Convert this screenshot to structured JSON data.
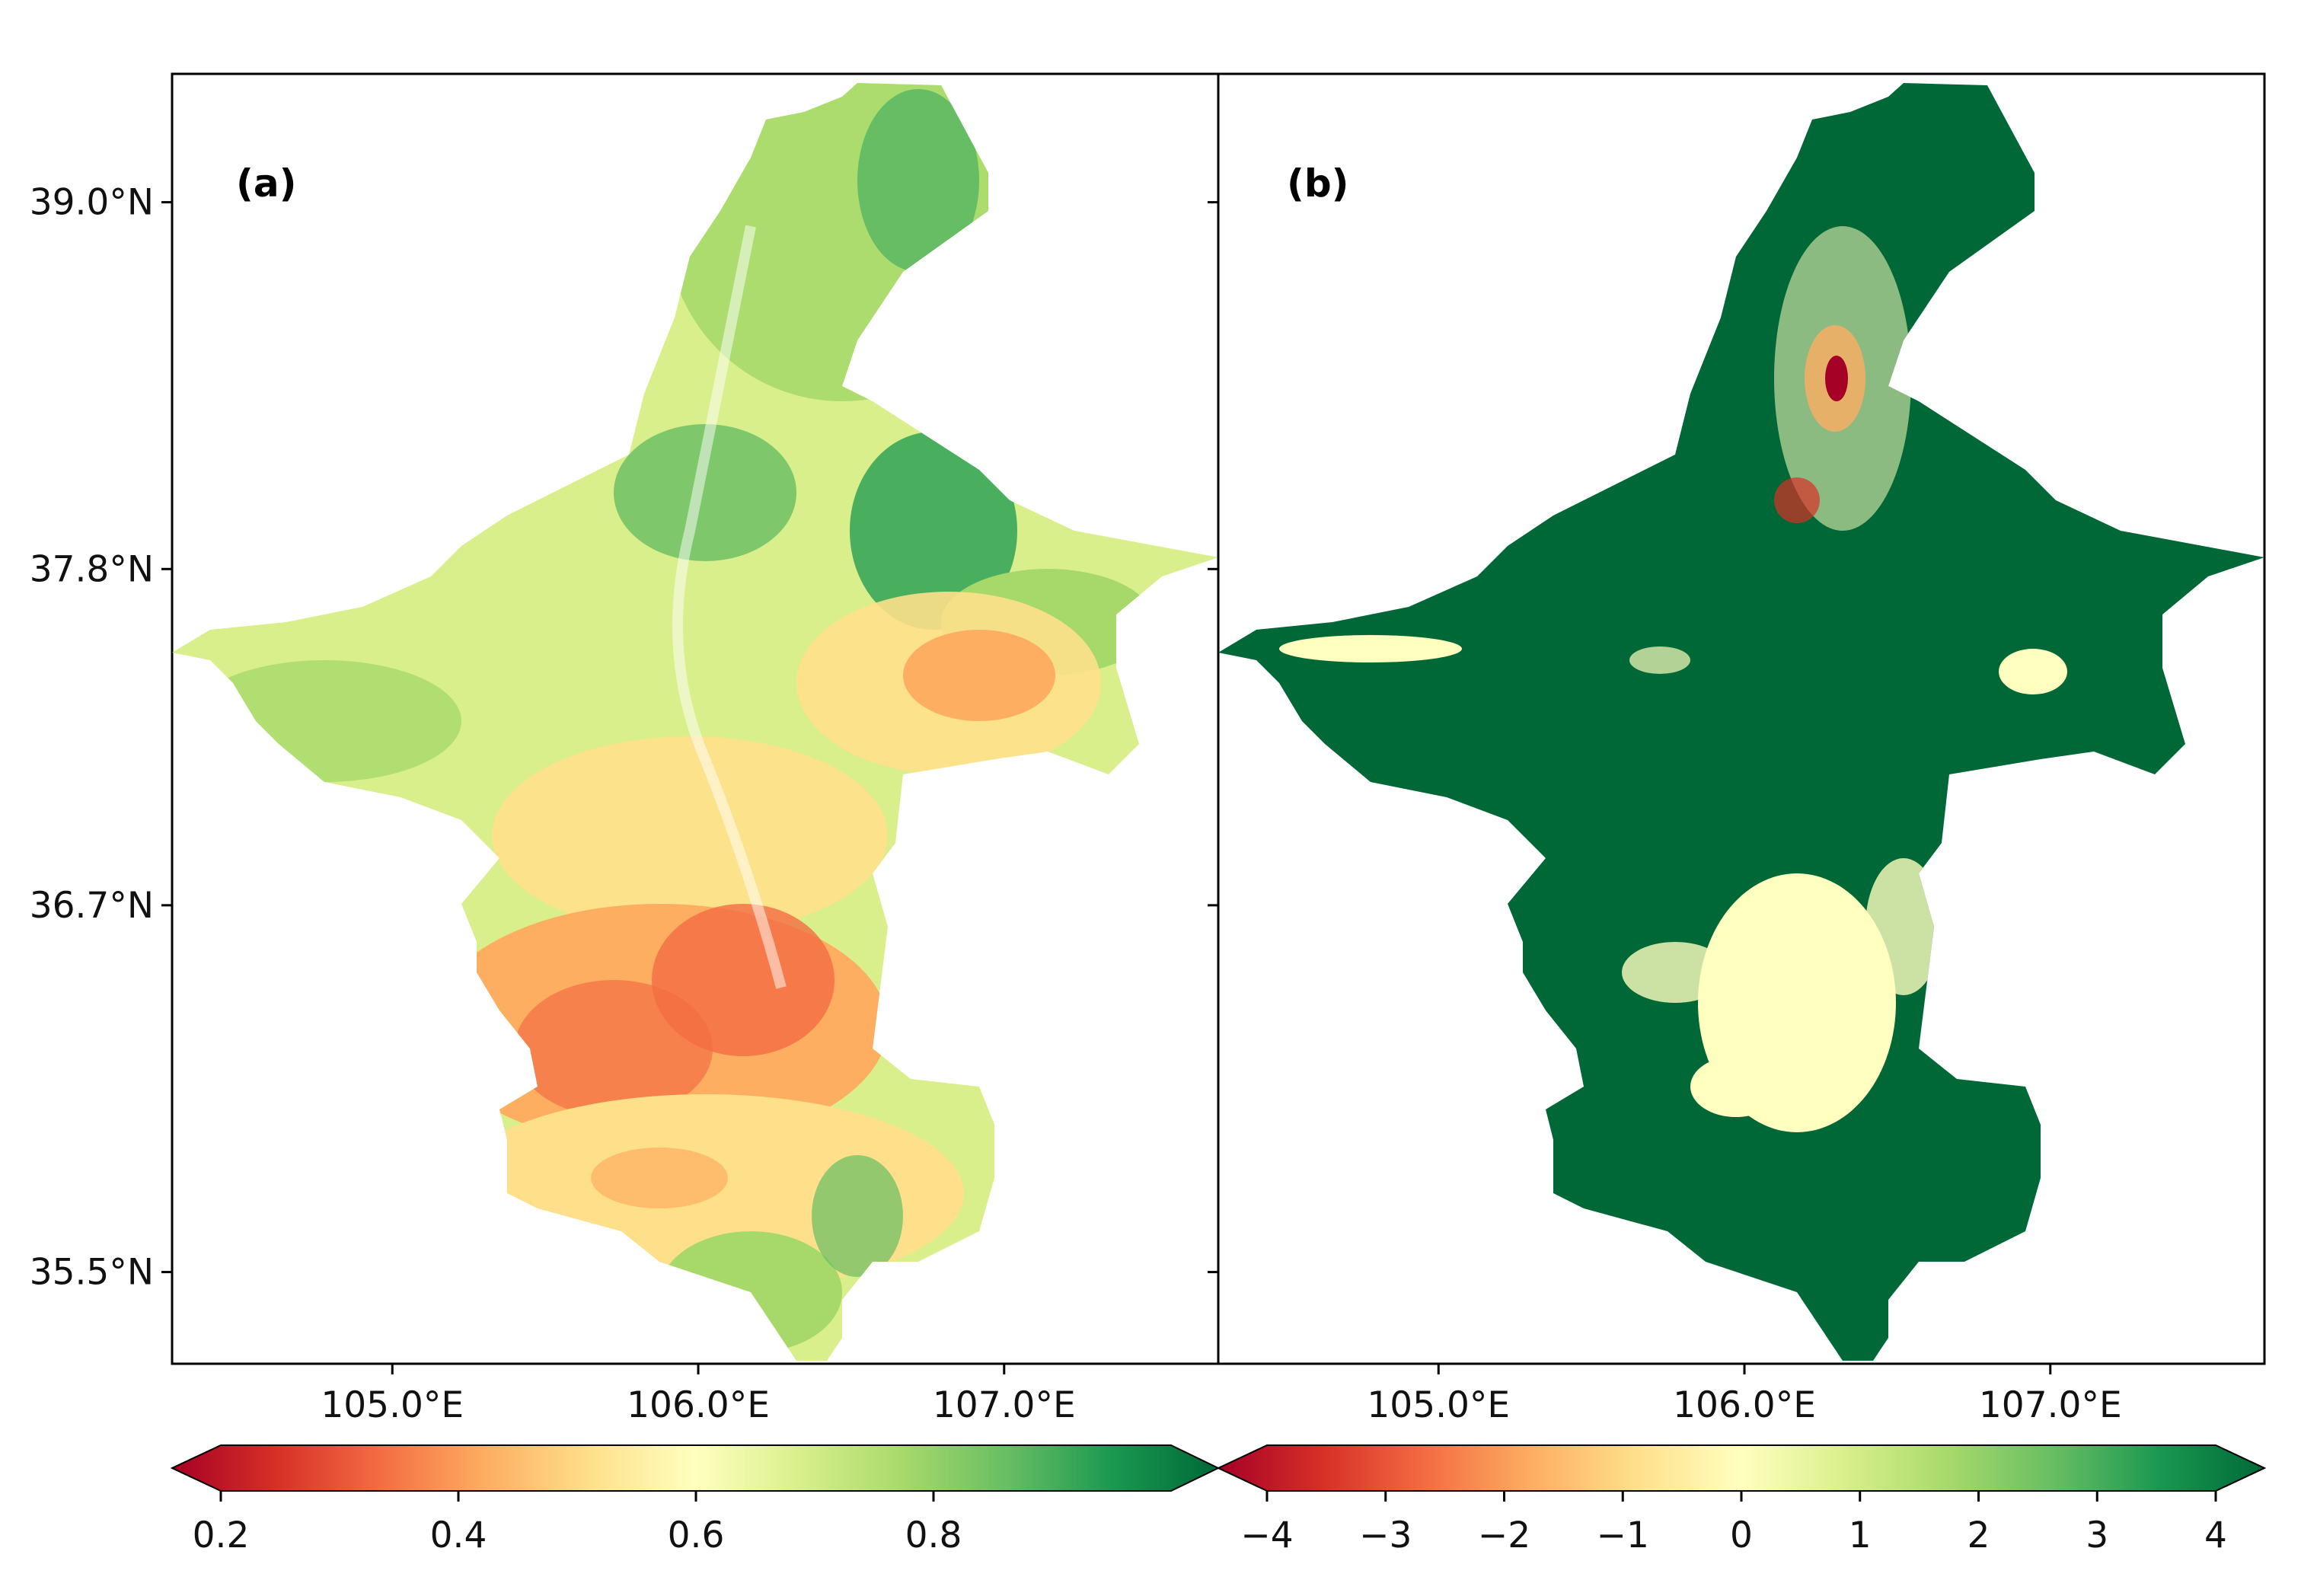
{
  "panels": [
    {
      "label": "(a)",
      "colorbar": {
        "min": 0.2,
        "max": 1.0,
        "ticks": [
          "0.2",
          "0.4",
          "0.6",
          "0.8"
        ],
        "tick_values": [
          0.2,
          0.4,
          0.6,
          0.8
        ],
        "extend": "both",
        "colormap": "RdYlGn"
      }
    },
    {
      "label": "(b)",
      "colorbar": {
        "min": -4,
        "max": 4,
        "ticks": [
          "−4",
          "−3",
          "−2",
          "−1",
          "0",
          "1",
          "2",
          "3",
          "4"
        ],
        "tick_values": [
          -4,
          -3,
          -2,
          -1,
          0,
          1,
          2,
          3,
          4
        ],
        "extend": "both",
        "colormap": "RdYlGn"
      }
    }
  ],
  "map": {
    "lon_range": [
      104.28,
      107.7
    ],
    "lat_range": [
      35.2,
      39.42
    ],
    "x_ticks": [
      "105.0°E",
      "106.0°E",
      "107.0°E"
    ],
    "x_tick_values": [
      105.0,
      106.0,
      107.0
    ],
    "y_ticks": [
      "39.0°N",
      "37.8°N",
      "36.7°N",
      "35.5°N"
    ],
    "y_tick_values": [
      39.0,
      37.8,
      36.7,
      35.5
    ]
  },
  "colors": {
    "dark_red": "#a50026",
    "red": "#d73027",
    "orange": "#f46d43",
    "light_orange": "#fdae61",
    "yellow": "#fee08b",
    "pale": "#ffffbf",
    "light_green": "#d9ef8b",
    "green": "#a6d96a",
    "mid_green": "#66bd63",
    "green2": "#1a9850",
    "dark_green": "#006837"
  }
}
